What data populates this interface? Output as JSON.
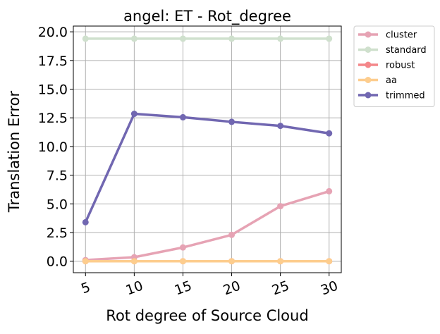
{
  "chart_data": {
    "type": "line",
    "title": "angel: ET - Rot_degree",
    "xlabel": "Rot degree of Source Cloud",
    "ylabel": "Translation Error",
    "x": [
      5,
      10,
      15,
      20,
      25,
      30
    ],
    "xticks": [
      "5",
      "10",
      "15",
      "20",
      "25",
      "30"
    ],
    "yticks": [
      "0.0",
      "2.5",
      "5.0",
      "7.5",
      "10.0",
      "12.5",
      "15.0",
      "17.5",
      "20.0"
    ],
    "ylim": [
      -1.0,
      20.5
    ],
    "grid": true,
    "legend_position": "outside-top-right",
    "series": [
      {
        "name": "cluster",
        "color": "#e6a3b4",
        "values": [
          0.1,
          0.35,
          1.2,
          2.3,
          4.8,
          6.1
        ]
      },
      {
        "name": "standard",
        "color": "#cfe0cd",
        "values": [
          19.4,
          19.4,
          19.4,
          19.4,
          19.4,
          19.4
        ]
      },
      {
        "name": "robust",
        "color": "#f4878a",
        "values": [
          0.0,
          0.0,
          0.0,
          0.0,
          0.0,
          0.0
        ]
      },
      {
        "name": "aa",
        "color": "#fdcd8e",
        "values": [
          0.0,
          0.0,
          0.0,
          0.0,
          0.0,
          0.0
        ]
      },
      {
        "name": "trimmed",
        "color": "#7167b1",
        "values": [
          3.4,
          12.85,
          12.55,
          12.15,
          11.8,
          11.15
        ]
      }
    ]
  }
}
